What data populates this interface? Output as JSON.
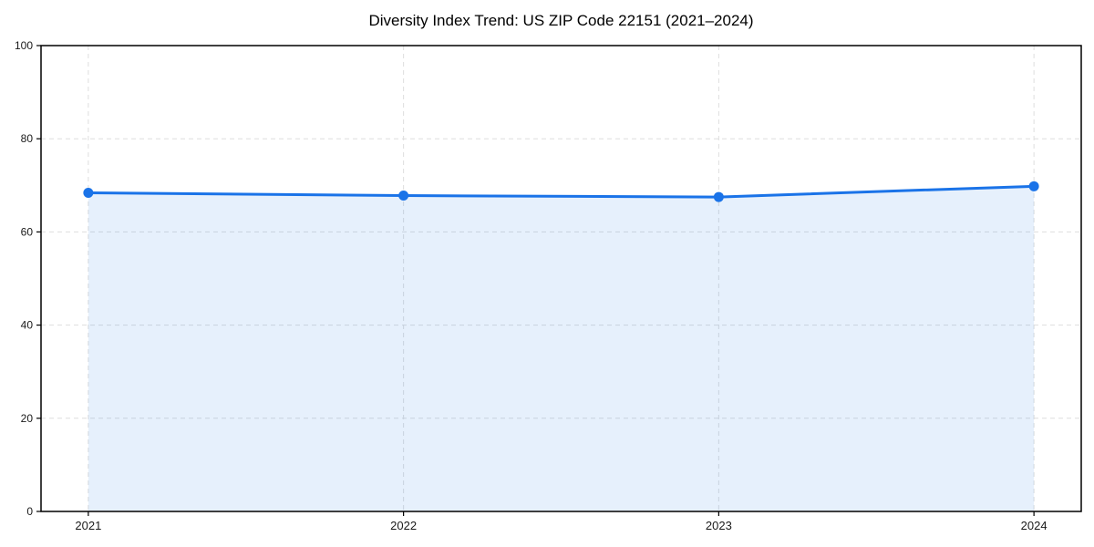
{
  "chart_data": {
    "type": "area",
    "title": "Diversity Index Trend: US ZIP Code 22151 (2021–2024)",
    "categories": [
      "2021",
      "2022",
      "2023",
      "2024"
    ],
    "x": [
      2021,
      2022,
      2023,
      2024
    ],
    "series": [
      {
        "name": "Diversity Index",
        "values": [
          68.4,
          67.8,
          67.5,
          69.8
        ]
      }
    ],
    "xlabel": "",
    "ylabel": "",
    "ylim": [
      0,
      100
    ],
    "yticks": [
      0,
      20,
      40,
      60,
      80,
      100
    ],
    "x_margin_fraction": 0.05,
    "grid": true,
    "grid_style": "dashed",
    "legend": "none",
    "colors": {
      "line": "#1a73e8",
      "marker": "#1a73e8",
      "fill": "rgba(26,115,232,0.11)",
      "grid": "#dedede",
      "frame": "#000000",
      "tick": "#000000",
      "tick_label": "#1a1a1a",
      "title": "#000000",
      "background": "#ffffff"
    },
    "marker_radius": 5.5,
    "line_width": 3
  }
}
